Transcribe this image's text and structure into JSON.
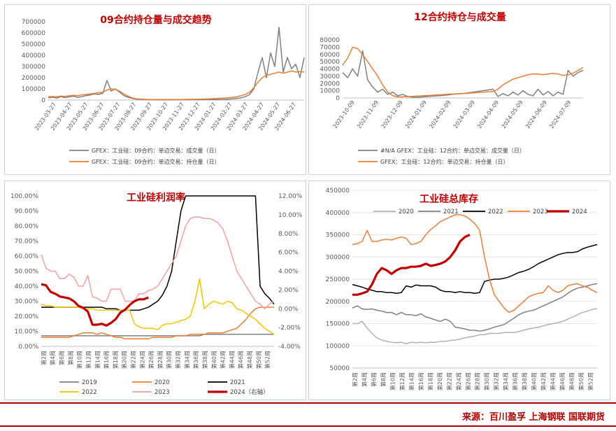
{
  "source_text": "来源：百川盈孚 上海钢联  国联期货",
  "colors": {
    "gray": "#808080",
    "orange": "#ed7d31",
    "black": "#000000",
    "yellow": "#f2c500",
    "pink": "#f4a0a0",
    "darkred": "#c00000",
    "lightgray": "#b0b0b0",
    "titlered": "#c00000"
  },
  "chart_data": [
    {
      "id": "c1",
      "type": "line",
      "title": "09合约持仓量与成交趋势",
      "ylim": [
        0,
        700000
      ],
      "yticks": [
        "0",
        "100000",
        "200000",
        "300000",
        "400000",
        "500000",
        "600000",
        "700000"
      ],
      "xticks": [
        "2023-03-27",
        "2023-04-27",
        "2023-05-27",
        "2023-06-27",
        "2023-07-27",
        "2023-08-27",
        "2023-09-27",
        "2023-10-27",
        "2023-11-27",
        "2023-12-27",
        "2024-01-27",
        "2024-02-27",
        "2024-03-27",
        "2024-04-27",
        "2024-05-27",
        "2024-06-27"
      ],
      "series": [
        {
          "name": "GFEX：工业硅：09合约：单边交易：成交量（日）",
          "color": "#808080",
          "values": [
            20000,
            25000,
            18000,
            30000,
            22000,
            28000,
            35000,
            25000,
            30000,
            40000,
            45000,
            55000,
            50000,
            60000,
            175000,
            80000,
            100000,
            70000,
            40000,
            25000,
            15000,
            8000,
            5000,
            4000,
            3000,
            3000,
            2500,
            2500,
            2500,
            2500,
            2500,
            3000,
            3000,
            3000,
            3000,
            3500,
            3500,
            4000,
            4000,
            4500,
            5000,
            5000,
            6000,
            8000,
            12000,
            15000,
            20000,
            30000,
            50000,
            100000,
            250000,
            380000,
            200000,
            420000,
            300000,
            650000,
            250000,
            380000,
            280000,
            320000,
            200000,
            380000
          ]
        },
        {
          "name": "GFEX：工业硅：09合约：单边交易：持仓量（日）",
          "color": "#ed7d31",
          "values": [
            30000,
            32000,
            30000,
            35000,
            33000,
            38000,
            42000,
            40000,
            45000,
            50000,
            55000,
            60000,
            65000,
            70000,
            90000,
            100000,
            95000,
            80000,
            55000,
            35000,
            20000,
            12000,
            8000,
            6000,
            5000,
            5000,
            5000,
            5000,
            5000,
            5000,
            5000,
            5000,
            5000,
            6000,
            6000,
            7000,
            8000,
            9000,
            10000,
            12000,
            14000,
            16000,
            18000,
            20000,
            25000,
            30000,
            40000,
            50000,
            70000,
            110000,
            160000,
            200000,
            220000,
            230000,
            240000,
            250000,
            240000,
            250000,
            260000,
            250000,
            255000,
            250000
          ]
        }
      ]
    },
    {
      "id": "c2",
      "type": "line",
      "title": "12合约持仓与成交量",
      "ylim": [
        0,
        80000
      ],
      "yticks": [
        "0",
        "10000",
        "20000",
        "30000",
        "40000",
        "50000",
        "60000",
        "70000",
        "80000"
      ],
      "xticks": [
        "2023-10-09",
        "2023-11-09",
        "2023-12-09",
        "2024-01-09",
        "2024-02-09",
        "2024-03-09",
        "2024-04-09",
        "2024-05-09",
        "2024-06-09",
        "2024-07-09"
      ],
      "series": [
        {
          "name": "#N/A GFEX：工业硅：12合约：单边交易：成交量（日）",
          "color": "#808080",
          "values": [
            35000,
            28000,
            40000,
            30000,
            65000,
            25000,
            15000,
            8000,
            12000,
            5000,
            8000,
            3000,
            5000,
            2000,
            1000,
            1000,
            1500,
            2000,
            2500,
            3000,
            3500,
            4000,
            5000,
            5500,
            6000,
            7000,
            8000,
            9000,
            10000,
            11000,
            12000,
            2000,
            6000,
            3000,
            8000,
            4000,
            10000,
            5000,
            3000,
            12000,
            4000,
            9000,
            3000,
            8000,
            5000,
            38000,
            30000,
            35000,
            38000
          ]
        },
        {
          "name": "GFEX：工业硅：12合约：单边交易：持仓量（日）",
          "color": "#ed7d31",
          "values": [
            45000,
            55000,
            70000,
            68000,
            60000,
            50000,
            40000,
            30000,
            18000,
            8000,
            3000,
            1500,
            1500,
            1800,
            2200,
            2600,
            3000,
            3400,
            3800,
            4200,
            4600,
            5000,
            5400,
            5800,
            6200,
            6600,
            7000,
            7500,
            8000,
            8500,
            9000,
            12000,
            18000,
            22000,
            26000,
            28000,
            30000,
            32000,
            33000,
            33000,
            32000,
            33000,
            34000,
            33000,
            31000,
            32000,
            34000,
            38000,
            42000
          ]
        }
      ]
    },
    {
      "id": "c3",
      "type": "line",
      "title": "工业硅利润率",
      "left_ylim": [
        0,
        100
      ],
      "right_ylim": [
        -4,
        12
      ],
      "yticks_left": [
        "0.00%",
        "10.00%",
        "20.00%",
        "30.00%",
        "40.00%",
        "50.00%",
        "60.00%",
        "70.00%",
        "80.00%",
        "90.00%",
        "100.00%"
      ],
      "yticks_right": [
        "-4.00%",
        "-2.00%",
        "0.00%",
        "2.00%",
        "4.00%",
        "6.00%",
        "8.00%",
        "10.00%",
        "12.00%"
      ],
      "xticks": [
        "第2周",
        "第4周",
        "第6周",
        "第8周",
        "第10周",
        "第12周",
        "第14周",
        "第16周",
        "第18周",
        "第20周",
        "第22周",
        "第24周",
        "第26周",
        "第28周",
        "第30周",
        "第32周",
        "第34周",
        "第36周",
        "第38周",
        "第40周",
        "第42周",
        "第44周",
        "第46周",
        "第48周",
        "第50周",
        "第52周"
      ],
      "right_axis_suffix": "（右轴）",
      "series": [
        {
          "name": "2019",
          "color": "#808080",
          "axis": "left",
          "values": [
            7,
            7,
            7,
            7,
            7,
            7,
            7,
            7,
            7,
            7,
            7,
            7,
            7,
            7,
            7,
            7,
            7,
            7,
            7,
            7,
            7,
            7,
            7,
            7,
            7,
            7,
            7,
            7,
            7,
            7,
            7,
            7,
            7,
            7,
            7,
            8,
            8,
            8,
            8,
            8,
            8,
            8,
            8,
            8,
            8,
            8,
            8,
            8,
            8,
            8,
            8
          ]
        },
        {
          "name": "2020",
          "color": "#ed7d31",
          "axis": "left",
          "values": [
            6,
            6,
            6,
            6,
            6,
            6,
            6,
            7,
            8,
            9,
            9,
            9,
            8,
            9,
            8,
            7,
            6,
            6,
            5,
            5,
            5,
            5,
            5,
            5,
            6,
            6,
            6,
            6,
            6,
            7,
            7,
            7,
            8,
            8,
            8,
            8,
            9,
            9,
            9,
            9,
            10,
            11,
            12,
            15,
            18,
            22,
            25,
            26,
            26,
            26,
            26
          ]
        },
        {
          "name": "2021",
          "color": "#000000",
          "axis": "left",
          "values": [
            26,
            26,
            26,
            26,
            26,
            26,
            26,
            26,
            26,
            26,
            26,
            26,
            26,
            26,
            25,
            25,
            25,
            24,
            24,
            24,
            24,
            24,
            25,
            26,
            28,
            30,
            34,
            40,
            50,
            70,
            90,
            100,
            100,
            100,
            100,
            100,
            100,
            100,
            100,
            100,
            100,
            100,
            100,
            100,
            100,
            100,
            100,
            40,
            35,
            32,
            28
          ]
        },
        {
          "name": "2022",
          "color": "#f2c500",
          "axis": "left",
          "values": [
            28,
            27,
            27,
            26,
            26,
            26,
            26,
            26,
            26,
            25,
            25,
            25,
            24,
            24,
            24,
            24,
            24,
            24,
            24,
            24,
            15,
            13,
            12,
            12,
            12,
            11,
            14,
            15,
            15,
            16,
            17,
            18,
            20,
            30,
            45,
            25,
            28,
            30,
            29,
            28,
            30,
            29,
            25,
            24,
            22,
            20,
            18,
            15,
            12,
            10,
            8
          ]
        },
        {
          "name": "2023",
          "color": "#f4a0a0",
          "axis": "left",
          "values": [
            61,
            52,
            50,
            50,
            45,
            45,
            48,
            46,
            40,
            40,
            47,
            33,
            32,
            30,
            30,
            38,
            38,
            38,
            30,
            30,
            30,
            35,
            35,
            37,
            38,
            40,
            45,
            50,
            55,
            60,
            70,
            80,
            85,
            86,
            86,
            85,
            85,
            84,
            82,
            78,
            70,
            60,
            50,
            45,
            40,
            35,
            30,
            28,
            25,
            28,
            30
          ]
        },
        {
          "name": "2024（右轴）",
          "color": "#c00000",
          "axis": "right",
          "values": [
            2.6,
            2.5,
            1.8,
            1.6,
            1.3,
            1.2,
            1.1,
            0.8,
            0.3,
            0.1,
            -0.3,
            -1.7,
            -1.7,
            -1.6,
            -1.8,
            -1.5,
            -1.1,
            -0.4,
            -0.1,
            0.4,
            0.8,
            1.0,
            1.0,
            1.2
          ]
        }
      ]
    },
    {
      "id": "c4",
      "type": "line",
      "title": "工业硅总库存",
      "ylim": [
        50000,
        450000
      ],
      "yticks": [
        "50000",
        "100000",
        "150000",
        "200000",
        "250000",
        "300000",
        "350000",
        "400000",
        "450000"
      ],
      "xticks": [
        "第2周",
        "第4周",
        "第6周",
        "第8周",
        "第10周",
        "第12周",
        "第14周",
        "第16周",
        "第18周",
        "第20周",
        "第22周",
        "第24周",
        "第26周",
        "第28周",
        "第30周",
        "第32周",
        "第34周",
        "第36周",
        "第38周",
        "第40周",
        "第42周",
        "第44周",
        "第46周",
        "第48周",
        "第50周",
        "第52周"
      ],
      "series": [
        {
          "name": "2020",
          "color": "#b0b0b0",
          "values": [
            150000,
            150000,
            155000,
            140000,
            128000,
            118000,
            113000,
            110000,
            108000,
            107000,
            108000,
            105000,
            108000,
            107000,
            108000,
            107000,
            108000,
            108000,
            110000,
            110000,
            112000,
            113000,
            115000,
            118000,
            120000,
            122000,
            125000,
            125000,
            128000,
            128000,
            128000,
            130000,
            130000,
            130000,
            132000,
            135000,
            138000,
            140000,
            142000,
            145000,
            148000,
            150000,
            152000,
            155000,
            160000,
            165000,
            170000,
            175000,
            178000,
            182000,
            184000
          ]
        },
        {
          "name": "2021",
          "color": "#808080",
          "values": [
            185000,
            190000,
            183000,
            182000,
            183000,
            180000,
            178000,
            175000,
            175000,
            170000,
            175000,
            170000,
            170000,
            168000,
            172000,
            165000,
            162000,
            158000,
            155000,
            160000,
            155000,
            142000,
            140000,
            138000,
            135000,
            135000,
            133000,
            135000,
            138000,
            142000,
            145000,
            148000,
            155000,
            162000,
            170000,
            175000,
            178000,
            180000,
            185000,
            190000,
            195000,
            200000,
            205000,
            210000,
            218000,
            225000,
            230000,
            232000,
            235000,
            238000,
            240000
          ]
        },
        {
          "name": "2022",
          "color": "#000000",
          "values": [
            238000,
            235000,
            232000,
            228000,
            225000,
            222000,
            222000,
            220000,
            220000,
            218000,
            220000,
            235000,
            232000,
            237000,
            235000,
            235000,
            235000,
            232000,
            225000,
            222000,
            222000,
            220000,
            222000,
            220000,
            220000,
            218000,
            220000,
            245000,
            248000,
            250000,
            250000,
            252000,
            255000,
            260000,
            265000,
            268000,
            272000,
            278000,
            285000,
            290000,
            295000,
            300000,
            305000,
            308000,
            310000,
            310000,
            312000,
            318000,
            322000,
            325000,
            328000
          ]
        },
        {
          "name": "2023",
          "color": "#ed7d31",
          "values": [
            328000,
            330000,
            335000,
            360000,
            335000,
            335000,
            338000,
            340000,
            338000,
            342000,
            345000,
            342000,
            328000,
            330000,
            335000,
            350000,
            362000,
            370000,
            380000,
            385000,
            390000,
            395000,
            395000,
            392000,
            385000,
            375000,
            360000,
            300000,
            250000,
            215000,
            200000,
            185000,
            175000,
            180000,
            190000,
            200000,
            210000,
            215000,
            218000,
            220000,
            235000,
            225000,
            220000,
            225000,
            235000,
            238000,
            240000,
            235000,
            232000,
            225000,
            220000
          ]
        },
        {
          "name": "2024",
          "color": "#c00000",
          "values": [
            215000,
            215000,
            218000,
            222000,
            238000,
            262000,
            275000,
            270000,
            262000,
            270000,
            275000,
            275000,
            278000,
            278000,
            280000,
            285000,
            280000,
            282000,
            285000,
            290000,
            300000,
            315000,
            335000,
            345000,
            350000
          ]
        }
      ]
    }
  ]
}
